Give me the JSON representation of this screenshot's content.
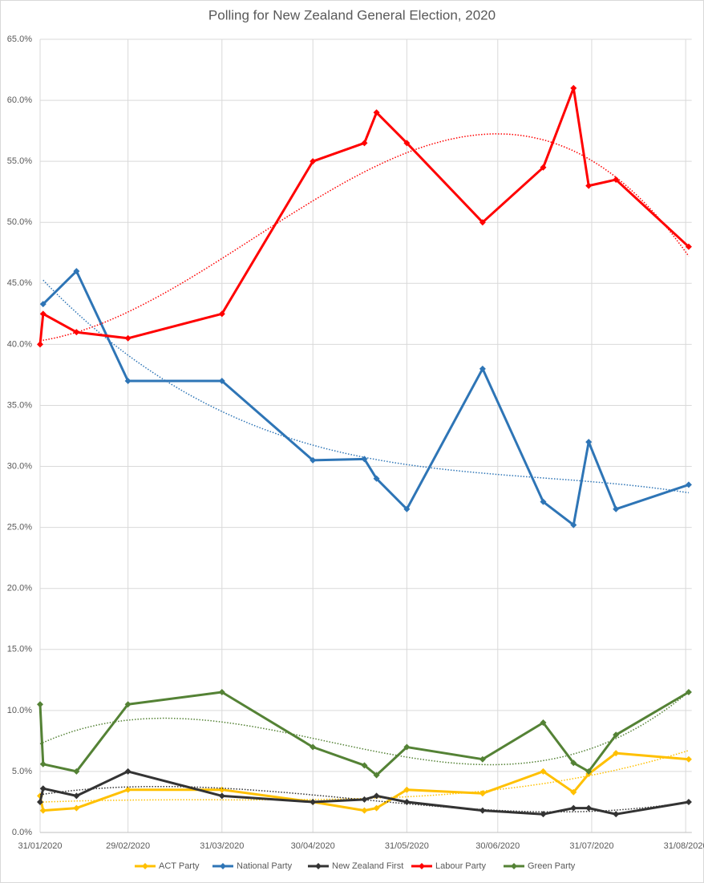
{
  "chart_data": {
    "type": "line",
    "title": "Polling for New Zealand General Election, 2020",
    "x": [
      "2020-01-31",
      "2020-02-01",
      "2020-02-12",
      "2020-02-29",
      "2020-03-31",
      "2020-04-30",
      "2020-05-17",
      "2020-05-21",
      "2020-05-31",
      "2020-06-25",
      "2020-07-15",
      "2020-07-25",
      "2020-07-30",
      "2020-08-08",
      "2020-09-01"
    ],
    "xlim": [
      "2020-01-31",
      "2020-09-02"
    ],
    "xticks": [
      {
        "value": "2020-01-31",
        "label": "31/01/2020"
      },
      {
        "value": "2020-02-29",
        "label": "29/02/2020"
      },
      {
        "value": "2020-03-31",
        "label": "31/03/2020"
      },
      {
        "value": "2020-04-30",
        "label": "30/04/2020"
      },
      {
        "value": "2020-05-31",
        "label": "31/05/2020"
      },
      {
        "value": "2020-06-30",
        "label": "30/06/2020"
      },
      {
        "value": "2020-07-31",
        "label": "31/07/2020"
      },
      {
        "value": "2020-08-31",
        "label": "31/08/2020"
      }
    ],
    "ylim": [
      0,
      65
    ],
    "yticks": [
      {
        "value": 0,
        "label": "0.0%"
      },
      {
        "value": 5,
        "label": "5.0%"
      },
      {
        "value": 10,
        "label": "10.0%"
      },
      {
        "value": 15,
        "label": "15.0%"
      },
      {
        "value": 20,
        "label": "20.0%"
      },
      {
        "value": 25,
        "label": "25.0%"
      },
      {
        "value": 30,
        "label": "30.0%"
      },
      {
        "value": 35,
        "label": "35.0%"
      },
      {
        "value": 40,
        "label": "40.0%"
      },
      {
        "value": 45,
        "label": "45.0%"
      },
      {
        "value": 50,
        "label": "50.0%"
      },
      {
        "value": 55,
        "label": "55.0%"
      },
      {
        "value": 60,
        "label": "60.0%"
      },
      {
        "value": 65,
        "label": "65.0%"
      }
    ],
    "grid": true,
    "legend": "bottom",
    "trendline": {
      "type": "polynomial",
      "order": 3
    },
    "series": [
      {
        "name": "ACT Party",
        "color": "#ffc000",
        "values": [
          3.0,
          1.8,
          2.0,
          3.5,
          3.5,
          2.5,
          1.8,
          2.0,
          3.5,
          3.2,
          5.0,
          3.3,
          4.8,
          6.5,
          6.0
        ]
      },
      {
        "name": "National Party",
        "color": "#2e75b6",
        "values": [
          null,
          43.3,
          46.0,
          37.0,
          37.0,
          30.5,
          30.6,
          29.0,
          26.5,
          38.0,
          27.1,
          25.2,
          32.0,
          26.5,
          28.5
        ]
      },
      {
        "name": "New Zealand First",
        "color": "#333333",
        "values": [
          2.5,
          3.6,
          3.0,
          5.0,
          3.0,
          2.5,
          2.7,
          3.0,
          2.5,
          1.8,
          1.5,
          2.0,
          2.0,
          1.5,
          2.5
        ]
      },
      {
        "name": "Labour Party",
        "color": "#ff0000",
        "values": [
          40.0,
          42.5,
          41.0,
          40.5,
          42.5,
          55.0,
          56.5,
          59.0,
          56.5,
          50.0,
          54.5,
          61.0,
          53.0,
          53.5,
          48.0
        ]
      },
      {
        "name": "Green Party",
        "color": "#548235",
        "values": [
          10.5,
          5.6,
          5.0,
          10.5,
          11.5,
          7.0,
          5.5,
          4.7,
          7.0,
          6.0,
          9.0,
          5.7,
          5.0,
          8.0,
          11.5
        ]
      }
    ]
  }
}
